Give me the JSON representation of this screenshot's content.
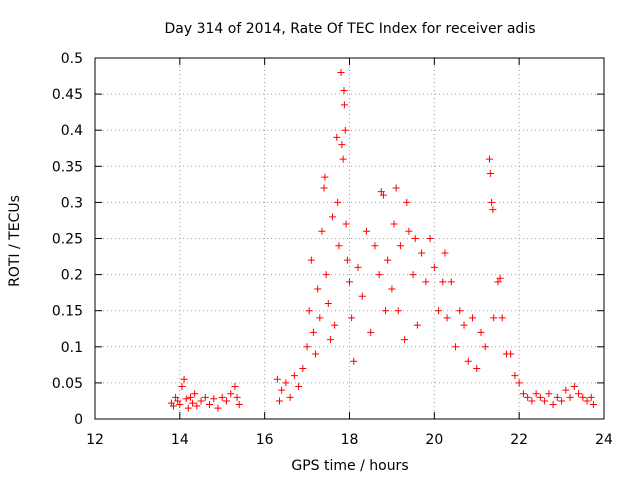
{
  "chart_data": {
    "type": "scatter",
    "title": "Day 314 of 2014, Rate Of TEC Index for receiver adis",
    "xlabel": "GPS time / hours",
    "ylabel": "ROTI / TECUs",
    "xlim": [
      12,
      24
    ],
    "ylim": [
      0,
      0.5
    ],
    "xticks": [
      12,
      14,
      16,
      18,
      20,
      22,
      24
    ],
    "yticks": [
      0,
      0.05,
      0.1,
      0.15,
      0.2,
      0.25,
      0.3,
      0.35,
      0.4,
      0.45,
      0.5
    ],
    "ytick_labels": [
      "0",
      "0.05",
      "0.1",
      "0.15",
      "0.2",
      "0.25",
      "0.3",
      "0.35",
      "0.4",
      "0.45",
      "0.5"
    ],
    "grid": true,
    "marker": "+",
    "color": "#ff0000",
    "series": [
      {
        "name": "ROTI",
        "points": [
          [
            13.8,
            0.022
          ],
          [
            13.85,
            0.018
          ],
          [
            13.9,
            0.03
          ],
          [
            13.95,
            0.025
          ],
          [
            14.0,
            0.02
          ],
          [
            14.05,
            0.045
          ],
          [
            14.1,
            0.055
          ],
          [
            14.15,
            0.028
          ],
          [
            14.2,
            0.015
          ],
          [
            14.25,
            0.03
          ],
          [
            14.3,
            0.022
          ],
          [
            14.35,
            0.035
          ],
          [
            14.4,
            0.018
          ],
          [
            14.5,
            0.025
          ],
          [
            14.6,
            0.03
          ],
          [
            14.7,
            0.02
          ],
          [
            14.8,
            0.028
          ],
          [
            14.9,
            0.015
          ],
          [
            15.0,
            0.03
          ],
          [
            15.1,
            0.025
          ],
          [
            15.2,
            0.035
          ],
          [
            15.3,
            0.045
          ],
          [
            15.35,
            0.03
          ],
          [
            15.4,
            0.02
          ],
          [
            16.3,
            0.055
          ],
          [
            16.35,
            0.025
          ],
          [
            16.4,
            0.04
          ],
          [
            16.5,
            0.05
          ],
          [
            16.6,
            0.03
          ],
          [
            16.7,
            0.06
          ],
          [
            16.8,
            0.045
          ],
          [
            16.9,
            0.07
          ],
          [
            17.0,
            0.1
          ],
          [
            17.05,
            0.15
          ],
          [
            17.1,
            0.22
          ],
          [
            17.15,
            0.12
          ],
          [
            17.2,
            0.09
          ],
          [
            17.25,
            0.18
          ],
          [
            17.3,
            0.14
          ],
          [
            17.35,
            0.26
          ],
          [
            17.4,
            0.32
          ],
          [
            17.42,
            0.335
          ],
          [
            17.45,
            0.2
          ],
          [
            17.5,
            0.16
          ],
          [
            17.55,
            0.11
          ],
          [
            17.6,
            0.28
          ],
          [
            17.65,
            0.13
          ],
          [
            17.7,
            0.39
          ],
          [
            17.72,
            0.3
          ],
          [
            17.75,
            0.24
          ],
          [
            17.8,
            0.48
          ],
          [
            17.82,
            0.38
          ],
          [
            17.85,
            0.36
          ],
          [
            17.87,
            0.455
          ],
          [
            17.88,
            0.435
          ],
          [
            17.9,
            0.4
          ],
          [
            17.92,
            0.27
          ],
          [
            17.95,
            0.22
          ],
          [
            18.0,
            0.19
          ],
          [
            18.05,
            0.14
          ],
          [
            18.1,
            0.08
          ],
          [
            18.2,
            0.21
          ],
          [
            18.3,
            0.17
          ],
          [
            18.4,
            0.26
          ],
          [
            18.5,
            0.12
          ],
          [
            18.6,
            0.24
          ],
          [
            18.7,
            0.2
          ],
          [
            18.75,
            0.315
          ],
          [
            18.8,
            0.31
          ],
          [
            18.85,
            0.15
          ],
          [
            18.9,
            0.22
          ],
          [
            19.0,
            0.18
          ],
          [
            19.05,
            0.27
          ],
          [
            19.1,
            0.32
          ],
          [
            19.15,
            0.15
          ],
          [
            19.2,
            0.24
          ],
          [
            19.3,
            0.11
          ],
          [
            19.35,
            0.3
          ],
          [
            19.4,
            0.26
          ],
          [
            19.5,
            0.2
          ],
          [
            19.55,
            0.25
          ],
          [
            19.6,
            0.13
          ],
          [
            19.7,
            0.23
          ],
          [
            19.8,
            0.19
          ],
          [
            19.9,
            0.25
          ],
          [
            20.0,
            0.21
          ],
          [
            20.1,
            0.15
          ],
          [
            20.2,
            0.19
          ],
          [
            20.25,
            0.23
          ],
          [
            20.3,
            0.14
          ],
          [
            20.4,
            0.19
          ],
          [
            20.5,
            0.1
          ],
          [
            20.6,
            0.15
          ],
          [
            20.7,
            0.13
          ],
          [
            20.8,
            0.08
          ],
          [
            20.9,
            0.14
          ],
          [
            21.0,
            0.07
          ],
          [
            21.1,
            0.12
          ],
          [
            21.2,
            0.1
          ],
          [
            21.3,
            0.36
          ],
          [
            21.32,
            0.34
          ],
          [
            21.35,
            0.3
          ],
          [
            21.38,
            0.29
          ],
          [
            21.4,
            0.14
          ],
          [
            21.5,
            0.19
          ],
          [
            21.55,
            0.195
          ],
          [
            21.6,
            0.14
          ],
          [
            21.7,
            0.09
          ],
          [
            21.8,
            0.09
          ],
          [
            21.9,
            0.06
          ],
          [
            22.0,
            0.05
          ],
          [
            22.1,
            0.035
          ],
          [
            22.2,
            0.03
          ],
          [
            22.3,
            0.025
          ],
          [
            22.4,
            0.035
          ],
          [
            22.5,
            0.03
          ],
          [
            22.6,
            0.025
          ],
          [
            22.7,
            0.035
          ],
          [
            22.8,
            0.02
          ],
          [
            22.9,
            0.03
          ],
          [
            23.0,
            0.025
          ],
          [
            23.1,
            0.04
          ],
          [
            23.2,
            0.03
          ],
          [
            23.3,
            0.045
          ],
          [
            23.4,
            0.035
          ],
          [
            23.5,
            0.03
          ],
          [
            23.6,
            0.025
          ],
          [
            23.7,
            0.03
          ],
          [
            23.75,
            0.02
          ]
        ]
      }
    ]
  }
}
